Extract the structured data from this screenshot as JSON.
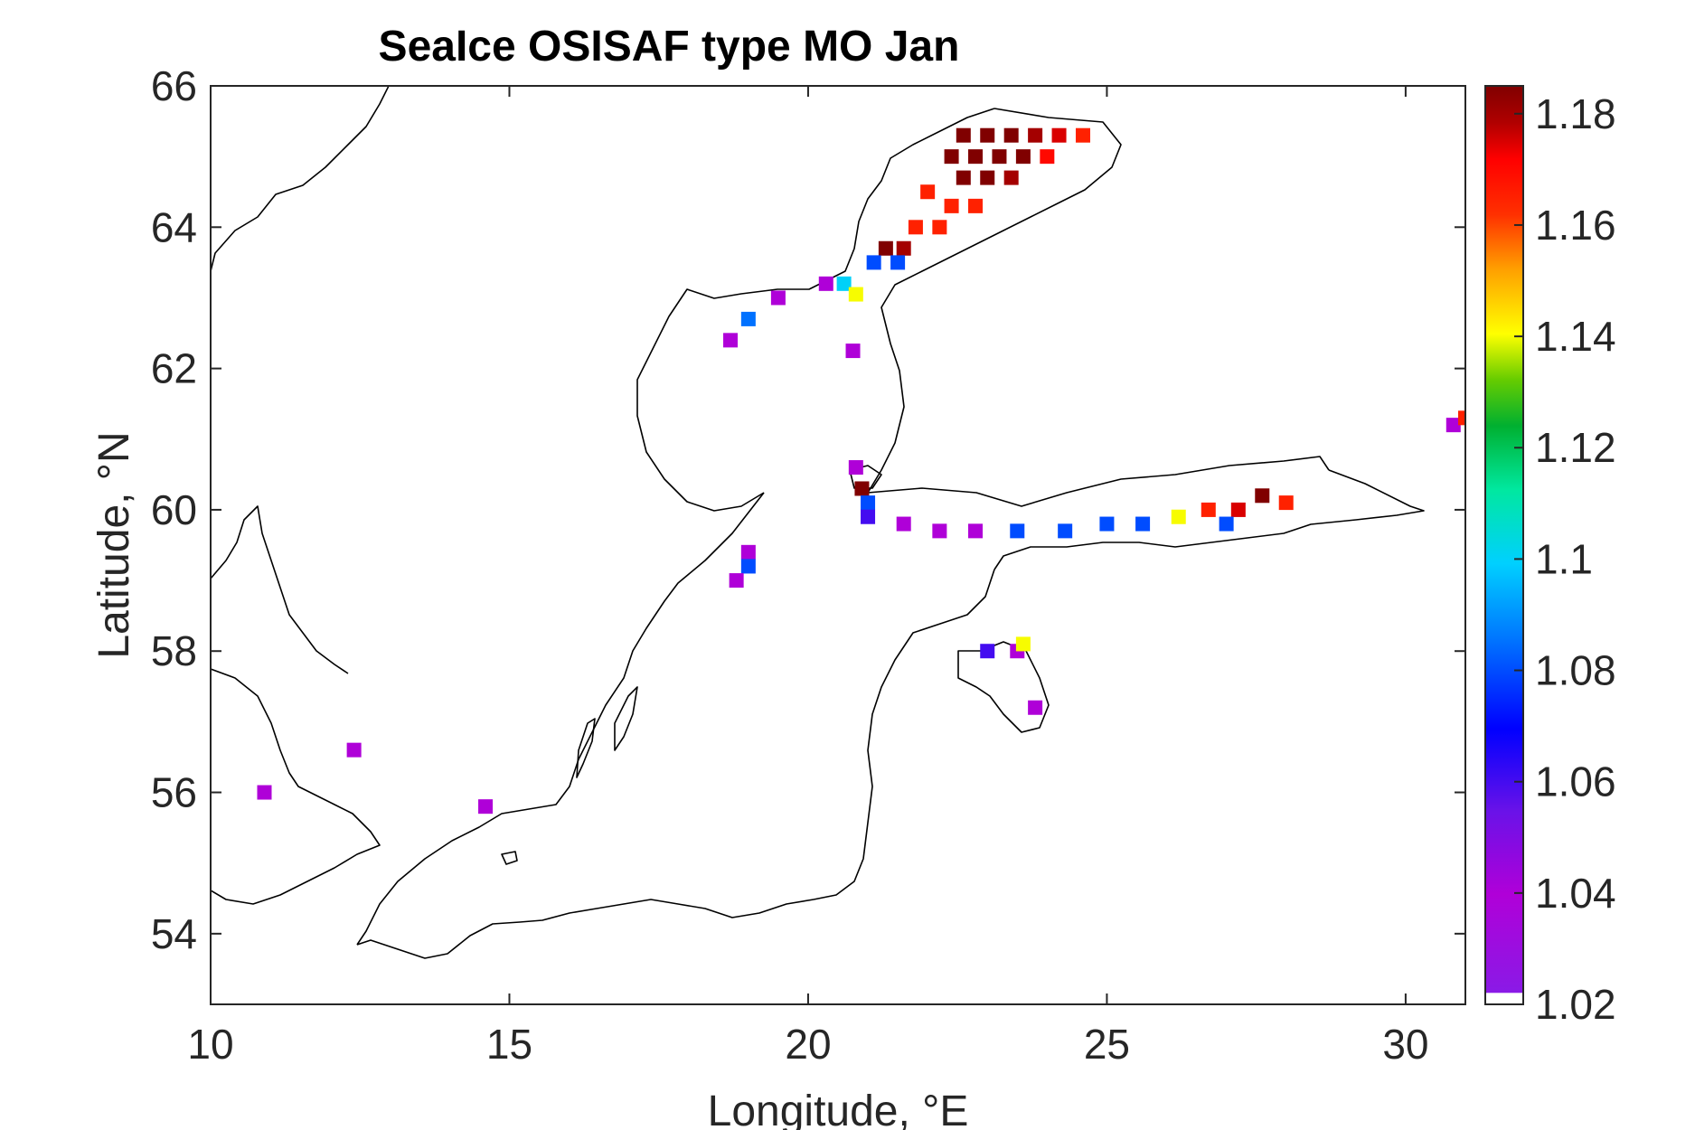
{
  "chart_data": {
    "type": "heatmap",
    "title": "SeaIce OSISAF type MO Jan",
    "xlabel": "Longitude, °E",
    "ylabel": "Latitude, °N",
    "xlim": [
      10,
      31
    ],
    "ylim": [
      53,
      66
    ],
    "xticks": [
      10,
      15,
      20,
      25,
      30
    ],
    "yticks": [
      54,
      56,
      58,
      60,
      62,
      64,
      66
    ],
    "colorbar": {
      "range": [
        1.02,
        1.185
      ],
      "ticks": [
        1.02,
        1.04,
        1.06,
        1.08,
        1.1,
        1.12,
        1.14,
        1.16,
        1.18
      ],
      "tick_labels": [
        "1.02",
        "1.04",
        "1.06",
        "1.08",
        "1.1",
        "1.12",
        "1.14",
        "1.16",
        "1.18"
      ],
      "colormap": "jet-like (white, purple, blue, cyan, green, yellow, red, dark red)"
    },
    "grid": false,
    "cells": [
      {
        "lon": 22.6,
        "lat": 65.3,
        "value": 1.185
      },
      {
        "lon": 23.0,
        "lat": 65.3,
        "value": 1.185
      },
      {
        "lon": 23.4,
        "lat": 65.3,
        "value": 1.185
      },
      {
        "lon": 23.8,
        "lat": 65.3,
        "value": 1.18
      },
      {
        "lon": 24.2,
        "lat": 65.3,
        "value": 1.175
      },
      {
        "lon": 24.6,
        "lat": 65.3,
        "value": 1.165
      },
      {
        "lon": 22.4,
        "lat": 65.0,
        "value": 1.185
      },
      {
        "lon": 22.8,
        "lat": 65.0,
        "value": 1.185
      },
      {
        "lon": 23.2,
        "lat": 65.0,
        "value": 1.185
      },
      {
        "lon": 23.6,
        "lat": 65.0,
        "value": 1.185
      },
      {
        "lon": 24.0,
        "lat": 65.0,
        "value": 1.17
      },
      {
        "lon": 22.6,
        "lat": 64.7,
        "value": 1.185
      },
      {
        "lon": 23.0,
        "lat": 64.7,
        "value": 1.185
      },
      {
        "lon": 23.4,
        "lat": 64.7,
        "value": 1.18
      },
      {
        "lon": 22.0,
        "lat": 64.5,
        "value": 1.165
      },
      {
        "lon": 22.4,
        "lat": 64.3,
        "value": 1.165
      },
      {
        "lon": 22.8,
        "lat": 64.3,
        "value": 1.165
      },
      {
        "lon": 21.8,
        "lat": 64.0,
        "value": 1.165
      },
      {
        "lon": 22.2,
        "lat": 64.0,
        "value": 1.165
      },
      {
        "lon": 21.3,
        "lat": 63.7,
        "value": 1.185
      },
      {
        "lon": 21.6,
        "lat": 63.7,
        "value": 1.18
      },
      {
        "lon": 21.1,
        "lat": 63.5,
        "value": 1.08
      },
      {
        "lon": 21.5,
        "lat": 63.5,
        "value": 1.08
      },
      {
        "lon": 19.5,
        "lat": 63.0,
        "value": 1.04
      },
      {
        "lon": 19.0,
        "lat": 62.7,
        "value": 1.085
      },
      {
        "lon": 18.7,
        "lat": 62.4,
        "value": 1.04
      },
      {
        "lon": 20.3,
        "lat": 63.2,
        "value": 1.04
      },
      {
        "lon": 20.6,
        "lat": 63.2,
        "value": 1.1
      },
      {
        "lon": 20.8,
        "lat": 63.05,
        "value": 1.14
      },
      {
        "lon": 20.75,
        "lat": 62.25,
        "value": 1.04
      },
      {
        "lon": 20.8,
        "lat": 60.6,
        "value": 1.04
      },
      {
        "lon": 20.9,
        "lat": 60.3,
        "value": 1.185
      },
      {
        "lon": 21.0,
        "lat": 60.1,
        "value": 1.08
      },
      {
        "lon": 21.0,
        "lat": 59.9,
        "value": 1.06
      },
      {
        "lon": 21.6,
        "lat": 59.8,
        "value": 1.04
      },
      {
        "lon": 22.2,
        "lat": 59.7,
        "value": 1.04
      },
      {
        "lon": 22.8,
        "lat": 59.7,
        "value": 1.04
      },
      {
        "lon": 23.5,
        "lat": 59.7,
        "value": 1.08
      },
      {
        "lon": 24.3,
        "lat": 59.7,
        "value": 1.08
      },
      {
        "lon": 25.0,
        "lat": 59.8,
        "value": 1.08
      },
      {
        "lon": 25.6,
        "lat": 59.8,
        "value": 1.08
      },
      {
        "lon": 26.2,
        "lat": 59.9,
        "value": 1.14
      },
      {
        "lon": 26.7,
        "lat": 60.0,
        "value": 1.165
      },
      {
        "lon": 27.2,
        "lat": 60.0,
        "value": 1.175
      },
      {
        "lon": 27.6,
        "lat": 60.2,
        "value": 1.185
      },
      {
        "lon": 28.0,
        "lat": 60.1,
        "value": 1.165
      },
      {
        "lon": 27.0,
        "lat": 59.8,
        "value": 1.08
      },
      {
        "lon": 19.0,
        "lat": 59.4,
        "value": 1.04
      },
      {
        "lon": 19.0,
        "lat": 59.2,
        "value": 1.08
      },
      {
        "lon": 18.8,
        "lat": 59.0,
        "value": 1.04
      },
      {
        "lon": 23.0,
        "lat": 58.0,
        "value": 1.06
      },
      {
        "lon": 23.5,
        "lat": 58.0,
        "value": 1.04
      },
      {
        "lon": 23.6,
        "lat": 58.1,
        "value": 1.14
      },
      {
        "lon": 23.8,
        "lat": 57.2,
        "value": 1.04
      },
      {
        "lon": 12.4,
        "lat": 56.6,
        "value": 1.04
      },
      {
        "lon": 10.9,
        "lat": 56.0,
        "value": 1.04
      },
      {
        "lon": 14.6,
        "lat": 55.8,
        "value": 1.04
      },
      {
        "lon": 30.8,
        "lat": 61.2,
        "value": 1.04
      },
      {
        "lon": 31.0,
        "lat": 61.3,
        "value": 1.165
      }
    ]
  }
}
